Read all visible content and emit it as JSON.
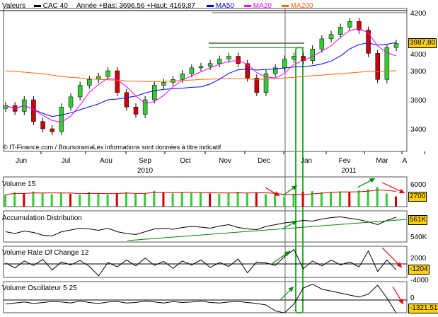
{
  "header": {
    "valeurs": "Valeurs",
    "symbol": "CAC 40",
    "annee": "Année +Bas: 3696,56 +Haut: 4169,87",
    "ma50": "MA50",
    "ma20": "MA20",
    "ma200": "MA200"
  },
  "colors": {
    "ma50": "#0000ff",
    "ma20": "#ff00ff",
    "ma200": "#ff6600",
    "up": "#33cc33",
    "down": "#cc0000",
    "tag": "#ffd200"
  },
  "credit": "© IT-Finance.com / BoursoramaLes informations sont données à titre indicatif",
  "chart_data": [
    {
      "type": "candlestick",
      "title": "CAC 40",
      "ylim": [
        3300,
        4250
      ],
      "yticks": [
        3400,
        3600,
        3800,
        4000,
        4200
      ],
      "months": [
        "Jun",
        "Jul",
        "Aou",
        "Sep",
        "Oct",
        "Nov",
        "Dec",
        "Jan",
        "Fev",
        "Mar",
        "A"
      ],
      "years": [
        "2010",
        "2011"
      ],
      "close": [
        3560,
        3520,
        3600,
        3450,
        3400,
        3380,
        3550,
        3620,
        3700,
        3740,
        3760,
        3800,
        3650,
        3550,
        3500,
        3600,
        3700,
        3720,
        3740,
        3780,
        3820,
        3830,
        3850,
        3880,
        3900,
        3850,
        3750,
        3650,
        3780,
        3820,
        3880,
        3900,
        3870,
        3950,
        4020,
        4050,
        4100,
        4140,
        4080,
        3920,
        3740,
        3960,
        3988
      ],
      "ma200": [
        3800,
        3795,
        3790,
        3785,
        3780,
        3770,
        3760,
        3755,
        3750,
        3745,
        3740,
        3738,
        3735,
        3730,
        3728,
        3726,
        3725,
        3727,
        3730,
        3733,
        3736,
        3740,
        3742,
        3744,
        3746,
        3745,
        3743,
        3740,
        3742,
        3745,
        3750,
        3755,
        3760,
        3765,
        3770,
        3775,
        3780,
        3785,
        3790,
        3795,
        3795,
        3798,
        3800
      ],
      "last_value": "3987,80"
    },
    {
      "type": "bar",
      "title": "Volume 15",
      "yticks": [
        6000
      ],
      "last_value": "2700",
      "values": [
        3200,
        3800,
        3500,
        4000,
        3600,
        3300,
        3700,
        3400,
        3100,
        3900,
        3500,
        3200,
        3600,
        3800,
        3400,
        3600,
        4200,
        3700,
        3500,
        3900,
        3600,
        3800,
        3500,
        3400,
        3700,
        3900,
        3600,
        3800,
        3300,
        2900,
        2600,
        3400,
        3900,
        4100,
        3800,
        3700,
        4000,
        3900,
        4300,
        4600,
        5200,
        3500,
        2700
      ]
    },
    {
      "type": "line",
      "title": "Accumulation Distribution",
      "yticks": [
        "540K"
      ],
      "last_value": "561K",
      "values": [
        520,
        515,
        522,
        518,
        510,
        508,
        520,
        525,
        530,
        528,
        524,
        530,
        520,
        515,
        512,
        520,
        528,
        530,
        527,
        532,
        535,
        533,
        530,
        536,
        540,
        532,
        528,
        526,
        535,
        540,
        545,
        548,
        552,
        550,
        556,
        560,
        562,
        558,
        554,
        548,
        540,
        552,
        561
      ]
    },
    {
      "type": "line",
      "title": "Volume Rate Of Change 12",
      "yticks": [
        2000,
        -4000
      ],
      "last_value": "-1204",
      "values": [
        200,
        -800,
        600,
        -300,
        900,
        -1200,
        400,
        -200,
        700,
        -500,
        -2400,
        300,
        -600,
        800,
        -400,
        1200,
        -300,
        500,
        -900,
        600,
        -200,
        800,
        -700,
        300,
        -500,
        1000,
        -1800,
        400,
        200,
        -300,
        1500,
        2900,
        -1000,
        600,
        -400,
        800,
        -200,
        400,
        -600,
        2600,
        -1500,
        800,
        -1204
      ]
    },
    {
      "type": "line",
      "title": "Volume Oscillateur 5 25",
      "yticks": [
        0
      ],
      "last_value": "-1321,51",
      "values": [
        -400,
        -300,
        -200,
        -350,
        -250,
        -150,
        -200,
        -300,
        -100,
        -250,
        -350,
        -200,
        -150,
        -300,
        -250,
        -100,
        -200,
        -300,
        -150,
        -250,
        -200,
        -100,
        -250,
        -300,
        -200,
        -150,
        -250,
        -350,
        -500,
        -1100,
        -1300,
        -400,
        1200,
        1600,
        1100,
        900,
        700,
        500,
        300,
        600,
        1500,
        200,
        -1321
      ]
    }
  ]
}
